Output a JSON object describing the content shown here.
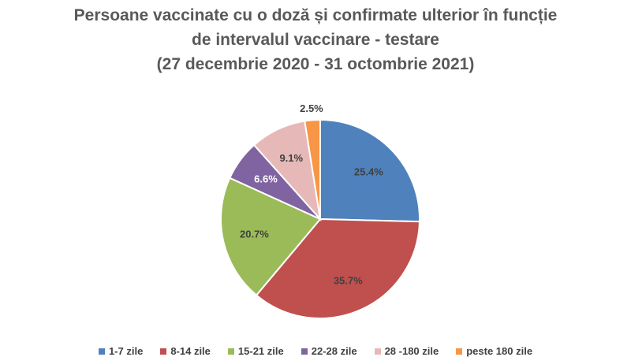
{
  "chart_data": {
    "type": "pie",
    "title": [
      "Persoane vaccinate cu o doză și confirmate ulterior în funcție",
      "de intervalul vaccinare - testare",
      "(27 decembrie 2020 - 31 octombrie 2021)"
    ],
    "categories": [
      "1-7 zile",
      "8-14 zile",
      "15-21 zile",
      "22-28 zile",
      "28 -180 zile",
      "peste 180 zile"
    ],
    "values": [
      25.4,
      35.7,
      20.7,
      6.6,
      9.1,
      2.5
    ],
    "labels": [
      "25.4%",
      "35.7%",
      "20.7%",
      "6.6%",
      "9.1%",
      "2.5%"
    ],
    "colors": [
      "#4F81BD",
      "#C0504D",
      "#9BBB59",
      "#8064A2",
      "#E6B9B8",
      "#F79646"
    ],
    "legend_position": "bottom"
  }
}
